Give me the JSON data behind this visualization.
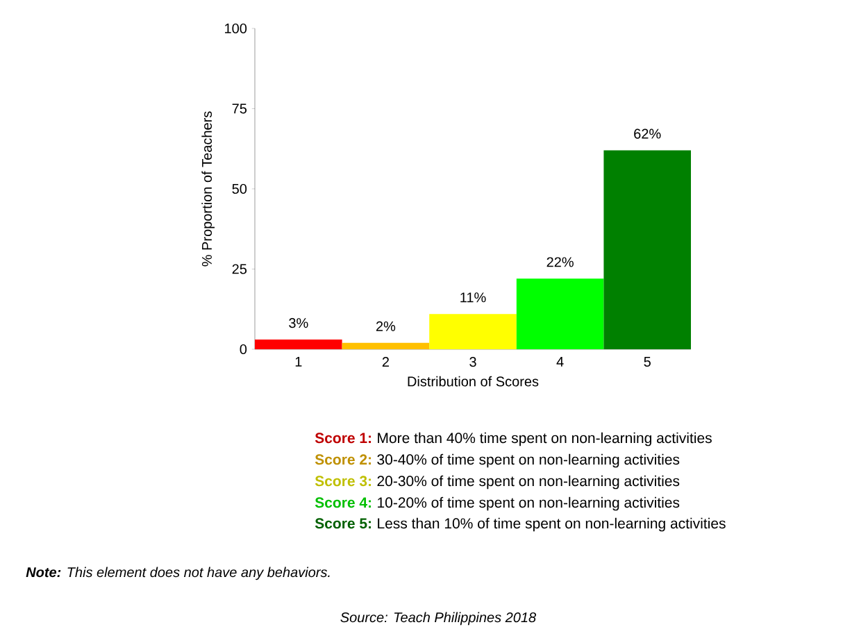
{
  "chart_data": {
    "type": "bar",
    "xlabel": "Distribution of Scores",
    "ylabel": "% Proportion of Teachers",
    "categories": [
      "1",
      "2",
      "3",
      "4",
      "5"
    ],
    "values": [
      3,
      2,
      11,
      22,
      62
    ],
    "value_labels": [
      "3%",
      "2%",
      "11%",
      "22%",
      "62%"
    ],
    "colors": [
      "#ff0000",
      "#ffc000",
      "#ffff00",
      "#00ff00",
      "#008000"
    ],
    "ylim": [
      0,
      100
    ],
    "yticks": [
      0,
      25,
      50,
      75,
      100
    ],
    "grid": false,
    "annotations": [
      "**Score 1:**",
      "More than 40% time spent on non-learning activities",
      "**Score 2:**",
      "30-40% of time spent on non-learning activities",
      "**Score 3:**",
      "20-30% of time spent on non-learning activities",
      "**Score 4:**",
      "10-20% of time spent on non-learning activities",
      "**Score 5:**",
      "Less than 10% of time spent on non-learning activities",
      "**Note:** This element does not have any behaviors.",
      "Source: Teach Philippines 2018"
    ]
  }
}
